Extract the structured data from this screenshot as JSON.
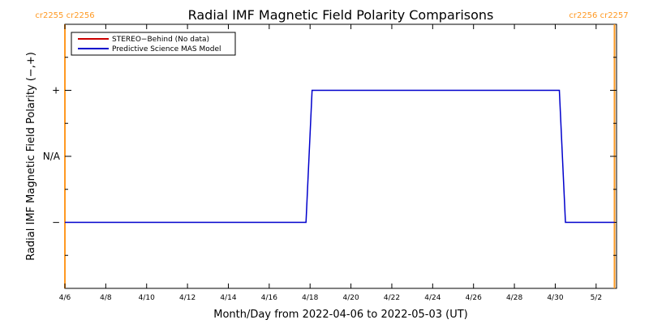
{
  "chart_data": {
    "type": "line",
    "title": "Radial IMF Magnetic Field Polarity Comparisons",
    "xlabel": "Month/Day from 2022-04-06 to 2022-05-03 (UT)",
    "ylabel": "Radial IMF Magnetic Field Polarity (−,+)",
    "x_start_day": 0,
    "xlim_days": [
      0,
      27
    ],
    "x_ticks": [
      {
        "label": "4/6",
        "day": 0
      },
      {
        "label": "4/8",
        "day": 2
      },
      {
        "label": "4/10",
        "day": 4
      },
      {
        "label": "4/12",
        "day": 6
      },
      {
        "label": "4/14",
        "day": 8
      },
      {
        "label": "4/16",
        "day": 10
      },
      {
        "label": "4/18",
        "day": 12
      },
      {
        "label": "4/20",
        "day": 14
      },
      {
        "label": "4/22",
        "day": 16
      },
      {
        "label": "4/24",
        "day": 18
      },
      {
        "label": "4/26",
        "day": 20
      },
      {
        "label": "4/28",
        "day": 22
      },
      {
        "label": "4/30",
        "day": 24
      },
      {
        "label": "5/2",
        "day": 26
      }
    ],
    "y_ticks": [
      {
        "label": "+",
        "value": 1
      },
      {
        "label": "N/A",
        "value": 0
      },
      {
        "label": "−",
        "value": -1
      }
    ],
    "ylim": [
      -2,
      2
    ],
    "legend_position": "top-left",
    "series": [
      {
        "name": "STEREO−Behind (No data)",
        "color": "#cc0000",
        "points": []
      },
      {
        "name": "Predictive Science MAS Model",
        "color": "#0000cc",
        "points": [
          {
            "x": 0.0,
            "y": -1
          },
          {
            "x": 11.8,
            "y": -1
          },
          {
            "x": 12.1,
            "y": 1
          },
          {
            "x": 24.2,
            "y": 1
          },
          {
            "x": 24.5,
            "y": -1
          },
          {
            "x": 26.9,
            "y": -1
          }
        ]
      }
    ],
    "rotations": [
      {
        "labels": "cr2255  cr2256",
        "day": 0,
        "side": "left"
      },
      {
        "labels": "cr2256  cr2257",
        "day": 26.9,
        "side": "right"
      }
    ],
    "rotation_line_color": "#ff9922",
    "grid": false
  }
}
